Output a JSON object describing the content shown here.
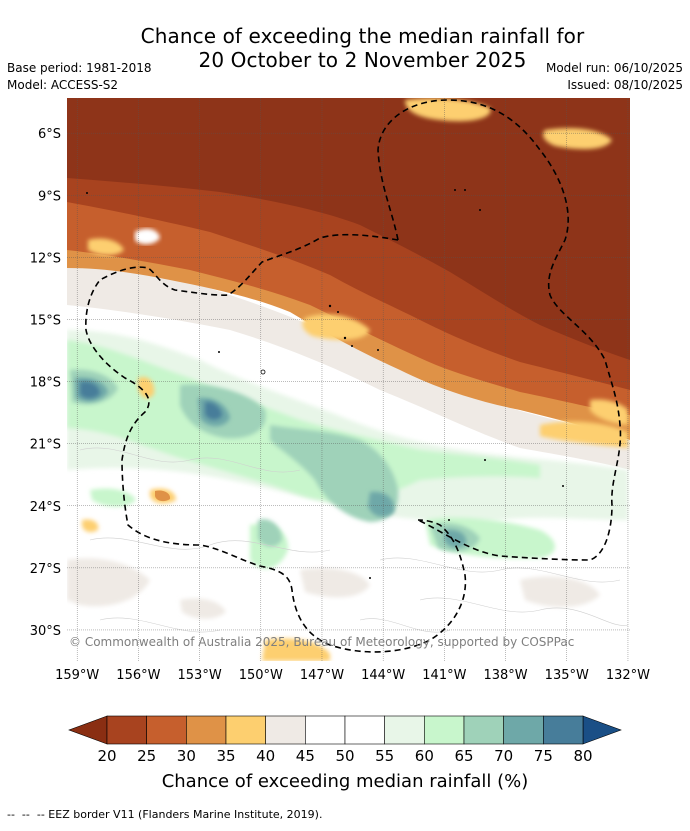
{
  "title": {
    "line1": "Chance of exceeding the median rainfall for",
    "line2": "20 October to 2 November 2025"
  },
  "meta": {
    "base_period": "Base period: 1981-2018",
    "model": "Model: ACCESS-S2",
    "model_run": "Model run: 06/10/2025",
    "issued": "Issued: 08/10/2025"
  },
  "map": {
    "lon_range": [
      -159.5,
      -131.9
    ],
    "lat_range": [
      -31.5,
      -4.3
    ],
    "lon_ticks": [
      {
        "value": -159,
        "label": "159°W"
      },
      {
        "value": -156,
        "label": "156°W"
      },
      {
        "value": -153,
        "label": "153°W"
      },
      {
        "value": -150,
        "label": "150°W"
      },
      {
        "value": -147,
        "label": "147°W"
      },
      {
        "value": -144,
        "label": "144°W"
      },
      {
        "value": -141,
        "label": "141°W"
      },
      {
        "value": -138,
        "label": "138°W"
      },
      {
        "value": -135,
        "label": "135°W"
      },
      {
        "value": -132,
        "label": "132°W"
      }
    ],
    "lat_ticks": [
      {
        "value": -6,
        "label": "6°S"
      },
      {
        "value": -9,
        "label": "9°S"
      },
      {
        "value": -12,
        "label": "12°S"
      },
      {
        "value": -15,
        "label": "15°S"
      },
      {
        "value": -18,
        "label": "18°S"
      },
      {
        "value": -21,
        "label": "21°S"
      },
      {
        "value": -24,
        "label": "24°S"
      },
      {
        "value": -27,
        "label": "27°S"
      },
      {
        "value": -30,
        "label": "30°S"
      }
    ],
    "copyright": "© Commonwealth of Australia 2025, Bureau of Meteorology, supported by COSPPac",
    "dominant_zones": [
      {
        "name": "north",
        "chance_percent": "20-25"
      },
      {
        "name": "south",
        "chance_percent": "45-70"
      }
    ]
  },
  "colorbar": {
    "title": "Chance of exceeding median rainfall (%)",
    "ticks": [
      "20",
      "25",
      "30",
      "35",
      "40",
      "45",
      "50",
      "55",
      "60",
      "65",
      "70",
      "75",
      "80"
    ],
    "low_arrow_color": "#8a2e12",
    "high_arrow_color": "#1a4f86",
    "colors": [
      "#a8431f",
      "#c65f2d",
      "#df9247",
      "#fdcf6f",
      "#efeae5",
      "#ffffff",
      "#ffffff",
      "#e8f6e8",
      "#c8f6cc",
      "#9fd2b9",
      "#6ea8a8",
      "#477d9a"
    ]
  },
  "footer": "--  --  -- EEZ border V11 (Flanders Marine Institute, 2019)."
}
